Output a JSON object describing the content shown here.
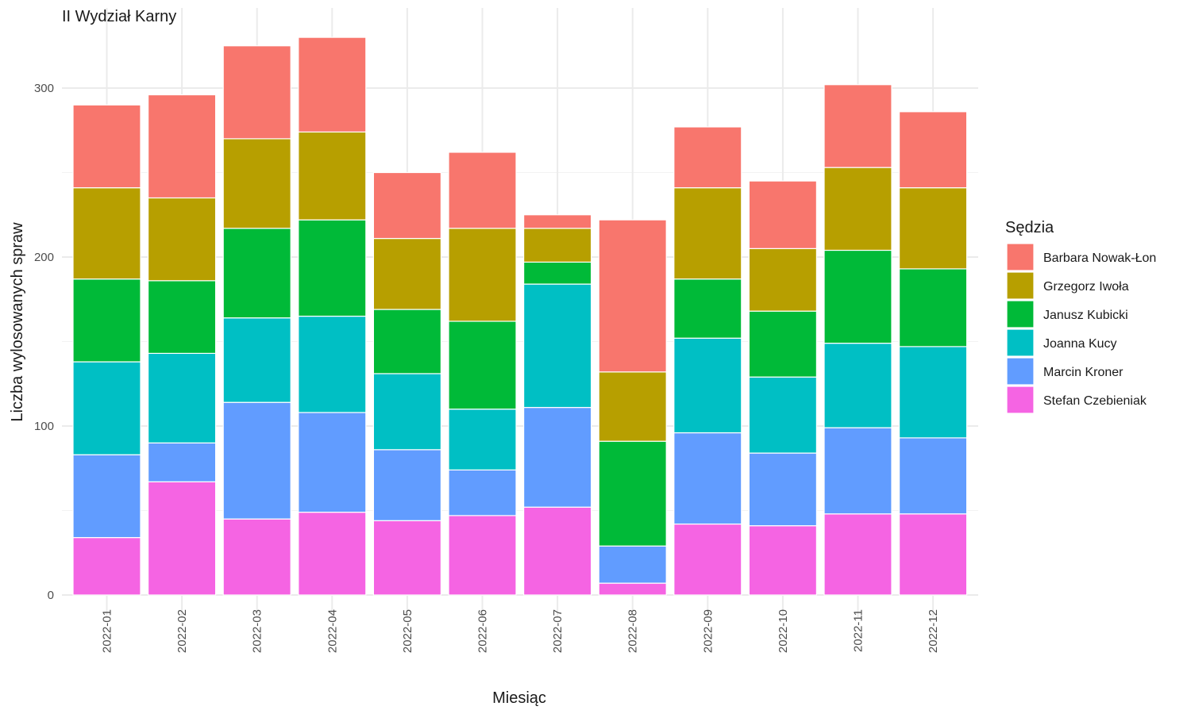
{
  "chart_data": {
    "type": "bar",
    "stacked": true,
    "title": "II Wydział Karny",
    "xlabel": "Miesiąc",
    "ylabel": "Liczba wylosowanych spraw",
    "ylim": [
      0,
      330
    ],
    "yticks": [
      0,
      100,
      200,
      300
    ],
    "grid": true,
    "legend": {
      "title": "Sędzia",
      "position": "right"
    },
    "categories": [
      "2022-01",
      "2022-02",
      "2022-03",
      "2022-04",
      "2022-05",
      "2022-06",
      "2022-07",
      "2022-08",
      "2022-09",
      "2022-10",
      "2022-11",
      "2022-12"
    ],
    "series": [
      {
        "name": "Stefan Czebieniak",
        "color": "#F564E3",
        "values": [
          34,
          67,
          45,
          49,
          44,
          47,
          52,
          7,
          42,
          41,
          48,
          48
        ]
      },
      {
        "name": "Marcin Kroner",
        "color": "#619CFF",
        "values": [
          49,
          23,
          69,
          59,
          42,
          27,
          59,
          22,
          54,
          43,
          51,
          45
        ]
      },
      {
        "name": "Joanna Kucy",
        "color": "#00BFC4",
        "values": [
          55,
          53,
          50,
          57,
          45,
          36,
          73,
          0,
          56,
          45,
          50,
          54
        ]
      },
      {
        "name": "Janusz Kubicki",
        "color": "#00BA38",
        "values": [
          49,
          43,
          53,
          57,
          38,
          52,
          13,
          62,
          35,
          39,
          55,
          46
        ]
      },
      {
        "name": "Grzegorz Iwoła",
        "color": "#B79F00",
        "values": [
          54,
          49,
          53,
          52,
          42,
          55,
          20,
          41,
          54,
          37,
          49,
          48
        ]
      },
      {
        "name": "Barbara Nowak-Łon",
        "color": "#F8766D",
        "values": [
          49,
          61,
          55,
          56,
          39,
          45,
          8,
          90,
          36,
          40,
          49,
          45
        ]
      }
    ],
    "legend_order": [
      "Barbara Nowak-Łon",
      "Grzegorz Iwoła",
      "Janusz Kubicki",
      "Joanna Kucy",
      "Marcin Kroner",
      "Stefan Czebieniak"
    ]
  }
}
